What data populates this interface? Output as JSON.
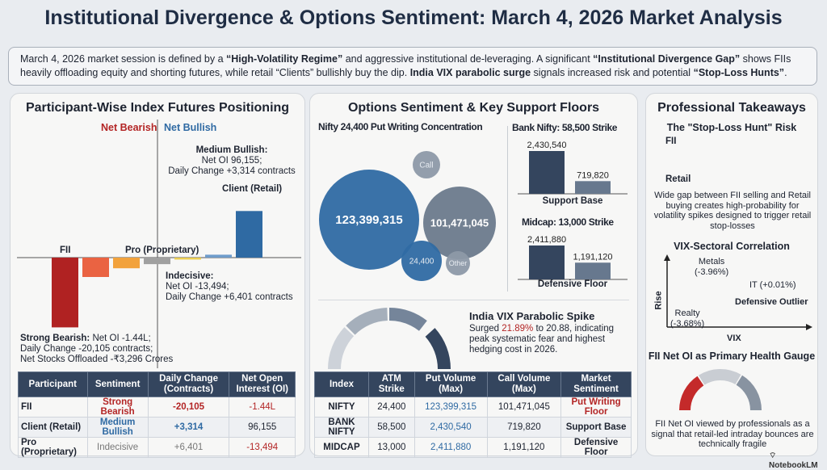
{
  "title": "Institutional Divergence & Options Sentiment: March 4, 2026 Market Analysis",
  "summary": {
    "p1": "March 4, 2026 market session is defined by a ",
    "b1": "“High-Volatility Regime”",
    "p2": " and aggressive institutional de-leveraging. A significant ",
    "b2": "“Institutional Divergence Gap”",
    "p3": " shows FIIs heavily offloading equity and shorting futures, while retail “Clients” bullishly buy the dip. ",
    "b3": "India VIX parabolic surge",
    "p4": " signals increased risk and potential ",
    "b4": "“Stop-Loss Hunts”",
    "p5": "."
  },
  "left": {
    "title": "Participant-Wise Index Futures Positioning",
    "net_bearish": "Net Bearish",
    "net_bullish": "Net Bullish",
    "lbl_fii": "FII",
    "lbl_pro": "Pro (Proprietary)",
    "lbl_client": "Client (Retail)",
    "client_note": {
      "h": "Medium Bullish:",
      "l1": "Net OI 96,155;",
      "l2": "Daily Change +3,314 contracts"
    },
    "pro_note": {
      "h": "Indecisive:",
      "l1": "Net OI -13,494;",
      "l2": "Daily Change +6,401 contracts"
    },
    "fii_note": {
      "h": "Strong Bearish:",
      "l1": " Net OI -1.44L;",
      "l2": "Daily Change -20,105 contracts;",
      "l3": "Net Stocks Offloaded -₹3,296 Crores"
    },
    "table": {
      "headers": [
        "Participant",
        "Sentiment",
        "Daily Change (Contracts)",
        "Net Open Interest (OI)"
      ],
      "rows": [
        [
          "FII",
          "Strong Bearish",
          "-20,105",
          "-1.44L"
        ],
        [
          "Client (Retail)",
          "Medium Bullish",
          "+3,314",
          "96,155"
        ],
        [
          "Pro (Proprietary)",
          "Indecisive",
          "+6,401",
          "-13,494"
        ]
      ]
    }
  },
  "middle": {
    "title": "Options Sentiment & Key Support Floors",
    "bubble_title": "Nifty 24,400 Put Writing Concentration",
    "bank_title": "Bank Nifty: 58,500 Strike",
    "bank_caption": "Support Base",
    "mid_title": "Midcap: 13,000 Strike",
    "mid_caption": "Defensive Floor",
    "vix": {
      "title": "India VIX Parabolic Spike",
      "t1": "Surged ",
      "pct": "21.89%",
      "t2": " to 20.88, indicating peak systematic fear and highest hedging cost in 2026."
    },
    "table": {
      "headers": [
        "Index",
        "ATM Strike",
        "Put Volume (Max)",
        "Call Volume (Max)",
        "Market Sentiment"
      ],
      "rows": [
        [
          "NIFTY",
          "24,400",
          "123,399,315",
          "101,471,045",
          "Put Writing Floor"
        ],
        [
          "BANK NIFTY",
          "58,500",
          "2,430,540",
          "719,820",
          "Support Base"
        ],
        [
          "MIDCAP",
          "13,000",
          "2,411,880",
          "1,191,120",
          "Defensive Floor"
        ]
      ]
    }
  },
  "right": {
    "title": "Professional Takeaways",
    "risk_title": "The \"Stop-Loss Hunt\" Risk",
    "fii": "FII",
    "retail": "Retail",
    "risk_text": "Wide gap between FII selling and Retail buying creates high-probability for volatility spikes designed to trigger retail stop-losses",
    "corr_title": "VIX-Sectoral Correlation",
    "y_axis": "Rise",
    "x_axis": "VIX",
    "metals": "Metals",
    "metals_v": "(-3.96%)",
    "it": "IT (+0.01%)",
    "outlier": "Defensive Outlier",
    "realty": "Realty",
    "realty_v": "(-3.68%)",
    "gauge_title": "FII Net OI as Primary Health Gauge",
    "gauge_text": "FII Net OI viewed by professionals as a signal that retail-led intraday bounces are technically fragile"
  },
  "brand": "NotebookLM",
  "colors": {
    "bearish": "#b32525",
    "bullish": "#2f6aa3",
    "navy": "#34455e",
    "slate": "#5b6b80"
  },
  "chart_data": [
    {
      "type": "bar",
      "title": "Participant-Wise Index Futures Positioning",
      "categories": [
        "FII",
        "",
        "",
        "Pro (Proprietary)",
        "",
        "",
        "Client (Retail)"
      ],
      "values": [
        -144000,
        -40000,
        -22000,
        -13494,
        -4000,
        6000,
        96155
      ],
      "colors": [
        "#b02222",
        "#ea6342",
        "#f2a23c",
        "#a0a0a0",
        "#eacd52",
        "#6f9ccb",
        "#2f6aa3"
      ]
    },
    {
      "type": "bubble",
      "title": "Nifty 24,400 Put Writing Concentration",
      "bubbles": [
        {
          "label": "123,399,315",
          "value": 123399315,
          "color": "#2f6aa3"
        },
        {
          "label": "101,471,045",
          "value": 101471045,
          "color": "#6b7a8c"
        },
        {
          "label": "Call",
          "color": "#8d99a8"
        },
        {
          "label": "24,400",
          "color": "#2f6aa3"
        },
        {
          "label": "Other",
          "color": "#8d99a8"
        }
      ]
    },
    {
      "type": "bar",
      "title": "Bank Nifty: 58,500 Strike",
      "categories": [
        "Put",
        "Call"
      ],
      "values": [
        2430540,
        719820
      ],
      "labels": [
        "2,430,540",
        "719,820"
      ]
    },
    {
      "type": "bar",
      "title": "Midcap: 13,000 Strike",
      "categories": [
        "Put",
        "Call"
      ],
      "values": [
        2411880,
        1191120
      ],
      "labels": [
        "2,411,880",
        "1,191,120"
      ]
    }
  ]
}
